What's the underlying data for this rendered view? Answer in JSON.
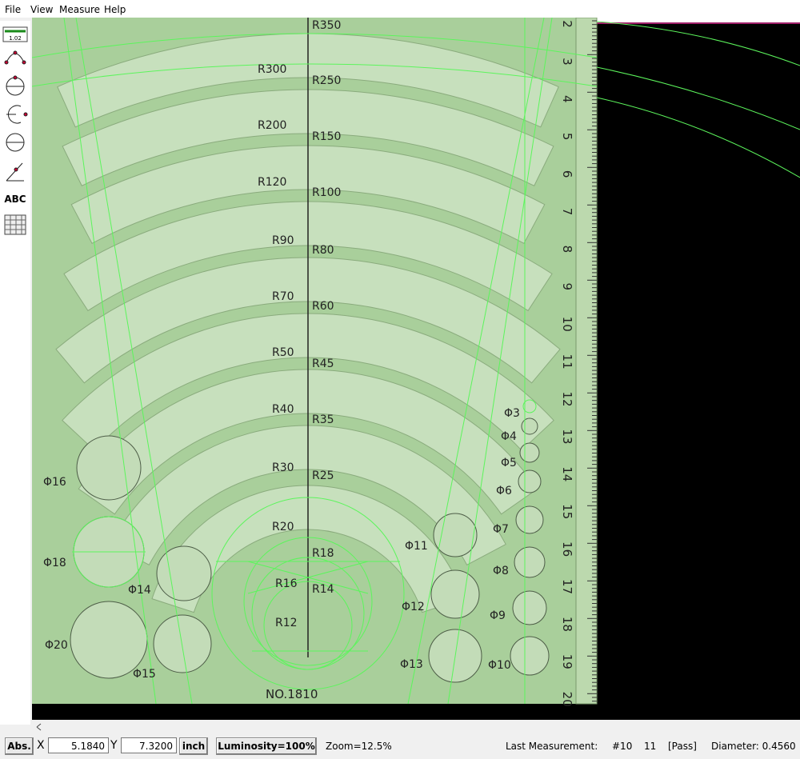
{
  "menu": [
    "File",
    "View",
    "Measure",
    "Help"
  ],
  "toolbar": {
    "scale_label": "1.02",
    "text_tool": "ABC"
  },
  "template": {
    "radius_labels": [
      "R350",
      "R300",
      "R250",
      "R200",
      "R150",
      "R120",
      "R100",
      "R90",
      "R80",
      "R70",
      "R60",
      "R50",
      "R45",
      "R40",
      "R35",
      "R30",
      "R25",
      "R20",
      "R18",
      "R16",
      "R14",
      "R12"
    ],
    "diameter_labels": [
      "Φ3",
      "Φ4",
      "Φ5",
      "Φ6",
      "Φ7",
      "Φ8",
      "Φ9",
      "Φ10",
      "Φ11",
      "Φ12",
      "Φ13",
      "Φ14",
      "Φ15",
      "Φ16",
      "Φ18",
      "Φ20"
    ],
    "ruler_numbers": [
      "2",
      "3",
      "4",
      "5",
      "6",
      "7",
      "8",
      "9",
      "10",
      "11",
      "12",
      "13",
      "14",
      "15",
      "16",
      "17",
      "18",
      "19",
      "20"
    ],
    "model": "NO.1810"
  },
  "status_bar": {
    "mode": "Abs.",
    "x_label": "X",
    "x_value": "5.1840",
    "y_label": "Y",
    "y_value": "7.3200",
    "unit": "inch",
    "luminosity": "Luminosity=100%",
    "zoom": "Zoom=12.5%",
    "last_measurement_label": "Last Measurement:",
    "measurement_id": "#10",
    "measurement_count": "11",
    "result": "[Pass]",
    "diameter": "Diameter: 0.4560"
  }
}
